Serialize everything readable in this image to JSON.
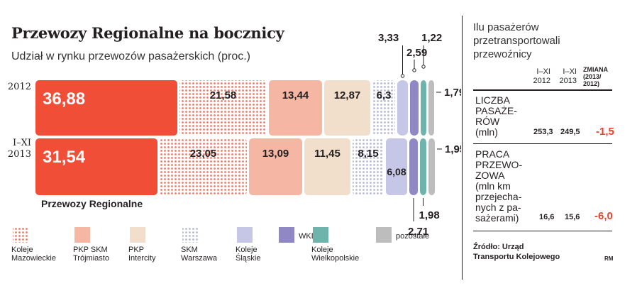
{
  "title": "Przewozy Regionalne na bocznicy",
  "subtitle": "Udział w rynku przewozów pasażerskich (proc.)",
  "chart_data": {
    "type": "bar",
    "stacked": true,
    "orientation": "horizontal",
    "categories": [
      "2012",
      "I–XI 2013"
    ],
    "series": [
      {
        "name": "Przewozy Regionalne",
        "values": [
          36.88,
          31.54
        ],
        "labels": [
          "36,88",
          "31,54"
        ],
        "color": "#f04e37",
        "pattern": "solid"
      },
      {
        "name": "Koleje Mazowieckie",
        "values": [
          21.58,
          23.05
        ],
        "labels": [
          "21,58",
          "23,05"
        ],
        "color": "#f47a67",
        "pattern": "dots"
      },
      {
        "name": "PKP SKM Trójmiasto",
        "values": [
          13.44,
          13.09
        ],
        "labels": [
          "13,44",
          "13,09"
        ],
        "color": "#f5b7a4",
        "pattern": "solid"
      },
      {
        "name": "PKP Intercity",
        "values": [
          12.87,
          11.45
        ],
        "labels": [
          "12,87",
          "11,45"
        ],
        "color": "#f1dfcc",
        "pattern": "solid"
      },
      {
        "name": "SKM Warszawa",
        "values": [
          6.3,
          8.15
        ],
        "labels": [
          "6,3",
          "8,15"
        ],
        "color": "#b7b8d8",
        "pattern": "dots"
      },
      {
        "name": "Koleje Śląskie",
        "values": [
          3.33,
          6.08
        ],
        "labels": [
          "3,33",
          "6,08"
        ],
        "color": "#c6c7e6",
        "pattern": "solid"
      },
      {
        "name": "WKD",
        "values": [
          2.59,
          2.71
        ],
        "labels": [
          "2,59",
          "2,71"
        ],
        "color": "#8f88c4",
        "pattern": "solid"
      },
      {
        "name": "Koleje Wielkopolskie",
        "values": [
          1.22,
          1.98
        ],
        "labels": [
          "1,22",
          "1,98"
        ],
        "color": "#6fb3ad",
        "pattern": "solid"
      },
      {
        "name": "pozostałe",
        "values": [
          1.79,
          1.95
        ],
        "labels": [
          "1,79",
          "1,95"
        ],
        "color": "#bdbdbd",
        "pattern": "solid"
      }
    ],
    "bar_caption": "Przewozy Regionalne",
    "legend": [
      {
        "label": "Koleje\nMazowieckie",
        "color": "#f47a67",
        "pattern": "dots"
      },
      {
        "label": "PKP SKM\nTrójmiasto",
        "color": "#f5b7a4",
        "pattern": "solid"
      },
      {
        "label": "PKP\nIntercity",
        "color": "#f1dfcc",
        "pattern": "solid"
      },
      {
        "label": "SKM\nWarszawa",
        "color": "#b7b8d8",
        "pattern": "dots"
      },
      {
        "label": "Koleje\nŚląskie",
        "color": "#c6c7e6",
        "pattern": "solid"
      },
      {
        "label": "WKD",
        "color": "#8f88c4",
        "pattern": "solid"
      },
      {
        "label": "Koleje\nWielkopolskie",
        "color": "#6fb3ad",
        "pattern": "solid"
      },
      {
        "label": "pozostałe",
        "color": "#bdbdbd",
        "pattern": "solid"
      }
    ],
    "legend_position": "bottom"
  },
  "row_labels": [
    "2012",
    "I–XI\n2013"
  ],
  "side_table": {
    "title": "Ilu pasażerów\nprzetransportowali\nprzewoźnicy",
    "col_headers": [
      "I–XI\n2012",
      "I–XI\n2013",
      "ZMIANA\n(2013/\n2012)"
    ],
    "rows": [
      {
        "metric": "LICZBA\nPASAŻE-\nRÓW\n(mln)",
        "v2012": "253,3",
        "v2013": "249,5",
        "change": "-1,5"
      },
      {
        "metric": "PRACA\nPRZEWO-\nZOWA\n(mln km\nprzejecha-\nnych z pa-\nsażerami)",
        "v2012": "16,6",
        "v2013": "15,6",
        "change": "-6,0"
      }
    ]
  },
  "source": "Źródło: Urząd\nTransportu Kolejowego",
  "credit": "RM",
  "colors": {
    "accent": "#e8412c",
    "text": "#231f20"
  }
}
